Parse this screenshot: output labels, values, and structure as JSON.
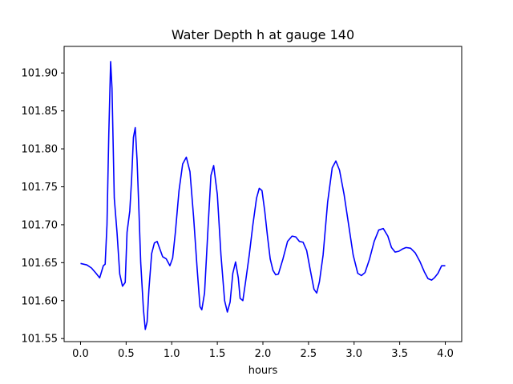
{
  "chart_data": {
    "type": "line",
    "title": "Water Depth h at gauge 140",
    "xlabel": "hours",
    "ylabel": "",
    "xlim": [
      -0.18,
      4.18
    ],
    "ylim": [
      101.546,
      101.935
    ],
    "xticks": [
      0.0,
      0.5,
      1.0,
      1.5,
      2.0,
      2.5,
      3.0,
      3.5,
      4.0
    ],
    "xtick_labels": [
      "0.0",
      "0.5",
      "1.0",
      "1.5",
      "2.0",
      "2.5",
      "3.0",
      "3.5",
      "4.0"
    ],
    "yticks": [
      101.55,
      101.6,
      101.65,
      101.7,
      101.75,
      101.8,
      101.85,
      101.9
    ],
    "ytick_labels": [
      "101.55",
      "101.60",
      "101.65",
      "101.70",
      "101.75",
      "101.80",
      "101.85",
      "101.90"
    ],
    "grid": false,
    "series": [
      {
        "color": "#0000ff",
        "x": [
          0.0,
          0.07,
          0.12,
          0.17,
          0.21,
          0.23,
          0.25,
          0.27,
          0.29,
          0.31,
          0.33,
          0.345,
          0.37,
          0.4,
          0.43,
          0.46,
          0.49,
          0.51,
          0.54,
          0.56,
          0.58,
          0.6,
          0.62,
          0.64,
          0.66,
          0.69,
          0.71,
          0.73,
          0.75,
          0.78,
          0.81,
          0.84,
          0.87,
          0.9,
          0.94,
          0.98,
          1.01,
          1.04,
          1.08,
          1.12,
          1.16,
          1.2,
          1.24,
          1.28,
          1.31,
          1.33,
          1.36,
          1.4,
          1.43,
          1.46,
          1.5,
          1.54,
          1.58,
          1.61,
          1.64,
          1.67,
          1.7,
          1.73,
          1.75,
          1.78,
          1.81,
          1.85,
          1.89,
          1.93,
          1.96,
          1.99,
          2.02,
          2.05,
          2.08,
          2.11,
          2.14,
          2.17,
          2.22,
          2.27,
          2.32,
          2.36,
          2.4,
          2.44,
          2.48,
          2.52,
          2.56,
          2.59,
          2.62,
          2.66,
          2.71,
          2.76,
          2.8,
          2.84,
          2.89,
          2.94,
          2.99,
          3.04,
          3.08,
          3.12,
          3.17,
          3.22,
          3.27,
          3.32,
          3.37,
          3.41,
          3.45,
          3.49,
          3.53,
          3.57,
          3.62,
          3.67,
          3.72,
          3.77,
          3.81,
          3.85,
          3.88,
          3.92,
          3.96,
          4.0
        ],
        "y": [
          101.649,
          101.647,
          101.643,
          101.636,
          101.63,
          101.638,
          101.646,
          101.648,
          101.7,
          101.82,
          101.915,
          101.88,
          101.735,
          101.69,
          101.635,
          101.619,
          101.624,
          101.69,
          101.718,
          101.76,
          101.815,
          101.828,
          101.785,
          101.72,
          101.65,
          101.588,
          101.562,
          101.572,
          101.615,
          101.662,
          101.676,
          101.678,
          101.668,
          101.658,
          101.655,
          101.646,
          101.656,
          101.69,
          101.745,
          101.78,
          101.789,
          101.77,
          101.71,
          101.64,
          101.592,
          101.588,
          101.61,
          101.7,
          101.765,
          101.778,
          101.74,
          101.66,
          101.6,
          101.585,
          101.598,
          101.636,
          101.651,
          101.63,
          101.603,
          101.6,
          101.625,
          101.66,
          101.7,
          101.735,
          101.748,
          101.745,
          101.718,
          101.685,
          101.655,
          101.64,
          101.634,
          101.635,
          101.655,
          101.678,
          101.685,
          101.684,
          101.678,
          101.677,
          101.666,
          101.64,
          101.615,
          101.61,
          101.625,
          101.66,
          101.73,
          101.775,
          101.784,
          101.772,
          101.74,
          101.7,
          101.66,
          101.636,
          101.633,
          101.637,
          101.655,
          101.678,
          101.693,
          101.695,
          101.685,
          101.67,
          101.664,
          101.665,
          101.668,
          101.67,
          101.669,
          101.663,
          101.652,
          101.638,
          101.629,
          101.627,
          101.63,
          101.636,
          101.646,
          101.646
        ]
      }
    ]
  }
}
